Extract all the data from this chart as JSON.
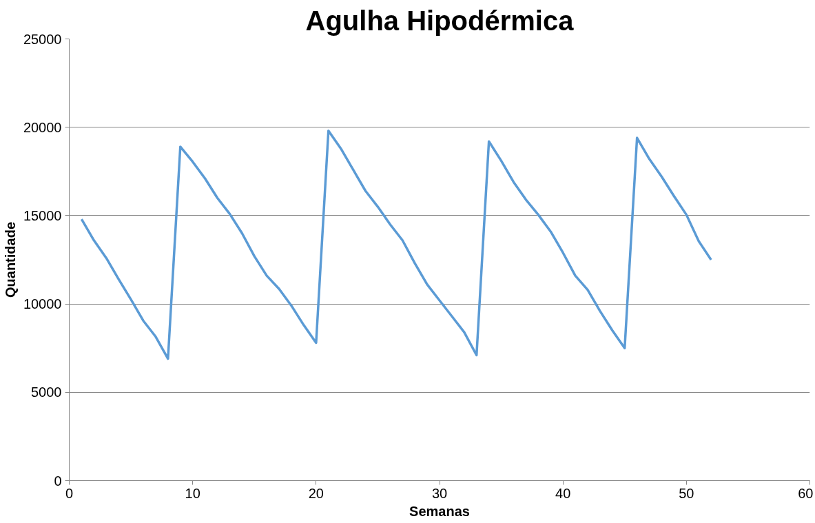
{
  "chart_data": {
    "type": "line",
    "title": "Agulha Hipodérmica",
    "xlabel": "Semanas",
    "ylabel": "Quantidade",
    "x": [
      1,
      2,
      3,
      4,
      5,
      6,
      7,
      8,
      9,
      10,
      11,
      12,
      13,
      14,
      15,
      16,
      17,
      18,
      19,
      20,
      21,
      22,
      23,
      24,
      25,
      26,
      27,
      28,
      29,
      30,
      31,
      32,
      33,
      34,
      35,
      36,
      37,
      38,
      39,
      40,
      41,
      42,
      43,
      44,
      45,
      46,
      47,
      48,
      49,
      50,
      51,
      52
    ],
    "series": [
      {
        "color": "#5b9bd5",
        "values": [
          14800,
          13600,
          12600,
          11400,
          10250,
          9050,
          8150,
          6900,
          18900,
          18050,
          17100,
          16000,
          15100,
          14000,
          12700,
          11600,
          10850,
          9900,
          8800,
          7800,
          19800,
          18800,
          17600,
          16400,
          15500,
          14500,
          13600,
          12300,
          11100,
          10200,
          9300,
          8400,
          7100,
          19200,
          18100,
          16900,
          15900,
          15050,
          14100,
          12900,
          11600,
          10800,
          9600,
          8500,
          7500,
          19400,
          18200,
          17200,
          16100,
          15050,
          13550,
          12500
        ]
      }
    ],
    "xlim": [
      0,
      60
    ],
    "xticks": [
      0,
      10,
      20,
      30,
      40,
      50,
      60
    ],
    "ylim": [
      0,
      25000
    ],
    "yticks": [
      0,
      5000,
      10000,
      15000,
      20000,
      25000
    ],
    "grid": "y",
    "marker": "none",
    "line_style": "solid"
  }
}
